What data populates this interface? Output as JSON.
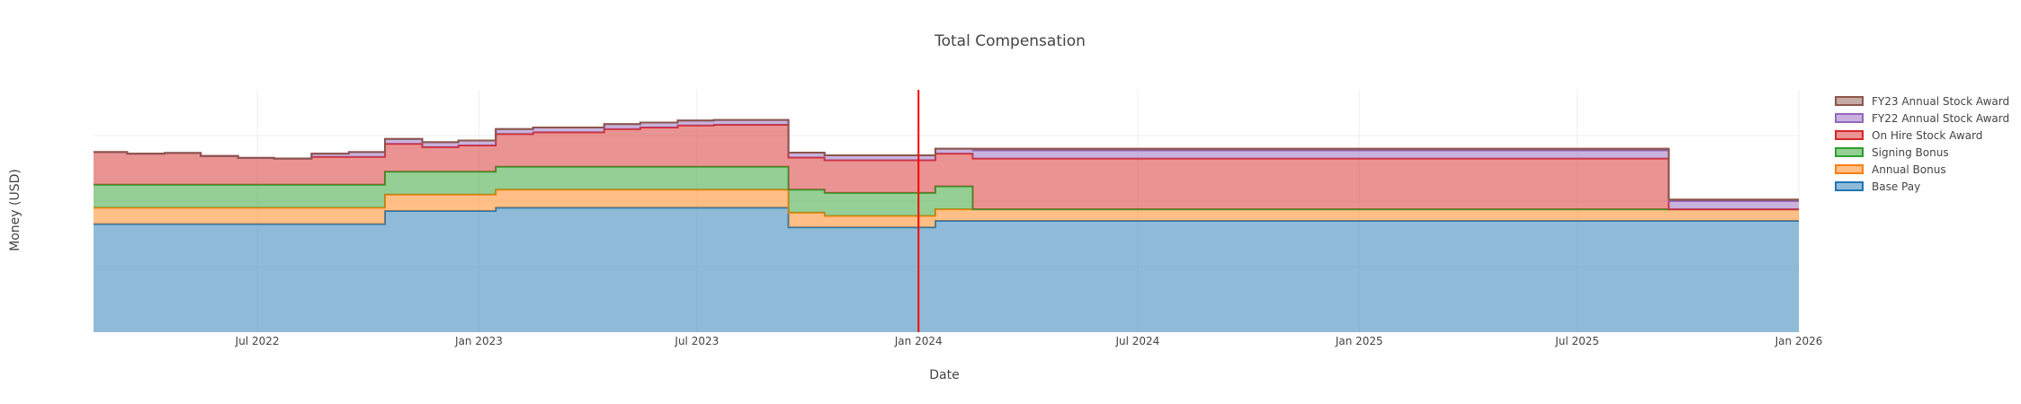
{
  "chart_data": {
    "type": "area",
    "stacked": true,
    "step": "hv",
    "title": "Total Compensation",
    "xlabel": "Date",
    "ylabel": "Money (USD)",
    "xrange": [
      "2022-02-15",
      "2026-01-01"
    ],
    "yrange": [
      0,
      740
    ],
    "x_ticks": [
      {
        "date": "2022-07-01",
        "label": "Jul 2022"
      },
      {
        "date": "2023-01-01",
        "label": "Jan 2023"
      },
      {
        "date": "2023-07-01",
        "label": "Jul 2023"
      },
      {
        "date": "2024-01-01",
        "label": "Jan 2024"
      },
      {
        "date": "2024-07-01",
        "label": "Jul 2024"
      },
      {
        "date": "2025-01-01",
        "label": "Jan 2025"
      },
      {
        "date": "2025-07-01",
        "label": "Jul 2025"
      },
      {
        "date": "2026-01-01",
        "label": "Jan 2026"
      }
    ],
    "y_gridlines": [
      200,
      400,
      600
    ],
    "grid": true,
    "legend_position": "top-right",
    "vline": {
      "date": "2024-01-01",
      "color": "#ff0000"
    },
    "x": [
      "2022-02-15",
      "2022-03-15",
      "2022-04-15",
      "2022-05-15",
      "2022-06-15",
      "2022-07-15",
      "2022-08-15",
      "2022-09-15",
      "2022-10-15",
      "2022-11-15",
      "2022-12-15",
      "2023-01-15",
      "2023-02-15",
      "2023-03-15",
      "2023-04-15",
      "2023-05-15",
      "2023-06-15",
      "2023-07-15",
      "2023-08-15",
      "2023-09-15",
      "2023-10-15",
      "2023-11-15",
      "2023-12-15",
      "2024-01-15",
      "2024-02-15",
      "2024-03-15",
      "2025-09-15",
      "2026-01-01"
    ],
    "series": [
      {
        "name": "Base Pay",
        "color": "#1f77b4",
        "values": [
          330,
          330,
          330,
          330,
          330,
          330,
          330,
          330,
          370,
          370,
          370,
          380,
          380,
          380,
          380,
          380,
          380,
          380,
          380,
          320,
          320,
          320,
          320,
          340,
          340,
          340,
          340,
          340
        ]
      },
      {
        "name": "Annual Bonus",
        "color": "#ff7f0e",
        "values": [
          50,
          50,
          50,
          50,
          50,
          50,
          50,
          50,
          50,
          50,
          50,
          55,
          55,
          55,
          55,
          55,
          55,
          55,
          55,
          45,
          35,
          35,
          35,
          35,
          35,
          35,
          35,
          35
        ]
      },
      {
        "name": "Signing Bonus",
        "color": "#2ca02c",
        "values": [
          70,
          70,
          70,
          70,
          70,
          70,
          70,
          70,
          70,
          70,
          70,
          70,
          70,
          70,
          70,
          70,
          70,
          70,
          70,
          70,
          70,
          70,
          70,
          70,
          0,
          0,
          0,
          0
        ]
      },
      {
        "name": "On Hire Stock Award",
        "color": "#d62728",
        "values": [
          100,
          95,
          97,
          88,
          82,
          80,
          85,
          85,
          85,
          75,
          80,
          100,
          105,
          105,
          115,
          120,
          126,
          128,
          128,
          98,
          100,
          100,
          100,
          100,
          155,
          155,
          0,
          0
        ]
      },
      {
        "name": "FY22 Annual Stock Award",
        "color": "#9467bd",
        "values": [
          0,
          0,
          0,
          0,
          0,
          0,
          10,
          15,
          15,
          15,
          15,
          15,
          15,
          15,
          15,
          15,
          15,
          15,
          15,
          15,
          15,
          15,
          15,
          15,
          25,
          25,
          25,
          25
        ]
      },
      {
        "name": "FY23 Annual Stock Award",
        "color": "#8c564b",
        "values": [
          0,
          0,
          0,
          0,
          0,
          0,
          0,
          0,
          0,
          0,
          0,
          0,
          0,
          0,
          0,
          0,
          0,
          0,
          0,
          0,
          0,
          0,
          0,
          0,
          5,
          5,
          5,
          5
        ]
      }
    ]
  }
}
